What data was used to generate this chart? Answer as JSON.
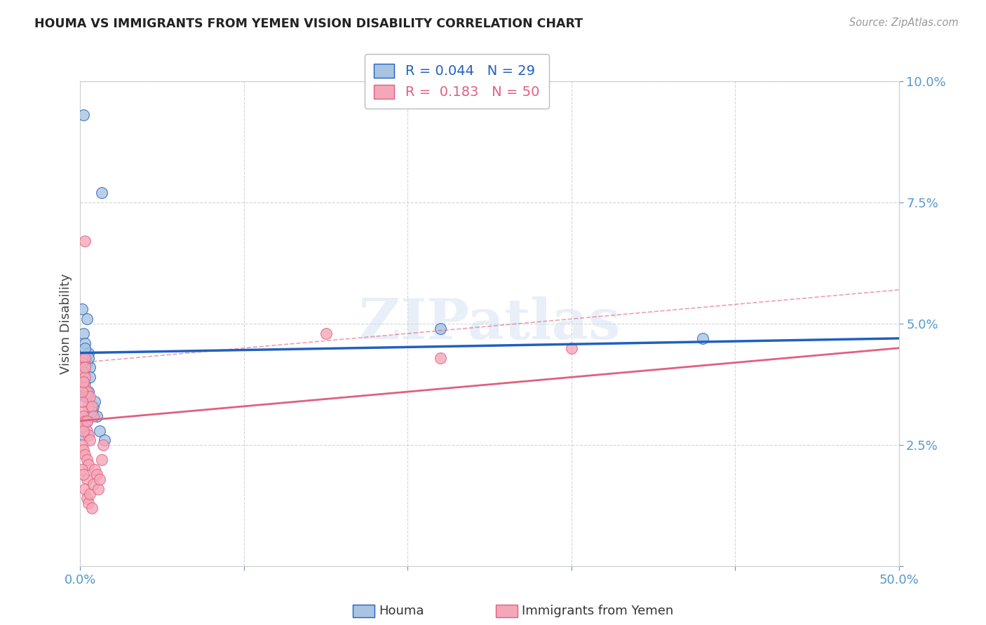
{
  "title": "HOUMA VS IMMIGRANTS FROM YEMEN VISION DISABILITY CORRELATION CHART",
  "source": "Source: ZipAtlas.com",
  "ylabel": "Vision Disability",
  "xlabel_houma": "Houma",
  "xlabel_yemen": "Immigrants from Yemen",
  "R_houma": 0.044,
  "N_houma": 29,
  "R_yemen": 0.183,
  "N_yemen": 50,
  "xlim": [
    0.0,
    0.5
  ],
  "ylim": [
    0.0,
    0.1
  ],
  "color_houma": "#a8c4e0",
  "color_yemen": "#f4a7b9",
  "line_color_houma": "#2060c0",
  "line_color_yemen": "#e06080",
  "houma_x": [
    0.002,
    0.013,
    0.001,
    0.002,
    0.003,
    0.004,
    0.003,
    0.005,
    0.004,
    0.003,
    0.006,
    0.005,
    0.001,
    0.002,
    0.003,
    0.008,
    0.01,
    0.012,
    0.015,
    0.007,
    0.009,
    0.001,
    0.003,
    0.004,
    0.002,
    0.006,
    0.22,
    0.38,
    0.005
  ],
  "houma_y": [
    0.093,
    0.077,
    0.053,
    0.048,
    0.046,
    0.051,
    0.043,
    0.044,
    0.042,
    0.038,
    0.041,
    0.036,
    0.04,
    0.037,
    0.045,
    0.033,
    0.031,
    0.028,
    0.026,
    0.032,
    0.034,
    0.029,
    0.035,
    0.03,
    0.027,
    0.039,
    0.049,
    0.047,
    0.043
  ],
  "yemen_x": [
    0.001,
    0.001,
    0.002,
    0.002,
    0.003,
    0.003,
    0.004,
    0.004,
    0.005,
    0.001,
    0.002,
    0.003,
    0.004,
    0.005,
    0.006,
    0.001,
    0.002,
    0.003,
    0.004,
    0.005,
    0.006,
    0.007,
    0.008,
    0.001,
    0.002,
    0.003,
    0.004,
    0.001,
    0.002,
    0.003,
    0.004,
    0.005,
    0.006,
    0.007,
    0.008,
    0.009,
    0.01,
    0.011,
    0.012,
    0.013,
    0.014,
    0.001,
    0.003,
    0.15,
    0.22,
    0.3,
    0.001,
    0.002,
    0.003,
    0.004
  ],
  "yemen_y": [
    0.043,
    0.042,
    0.04,
    0.038,
    0.043,
    0.037,
    0.036,
    0.035,
    0.033,
    0.032,
    0.031,
    0.03,
    0.028,
    0.027,
    0.026,
    0.025,
    0.024,
    0.023,
    0.022,
    0.021,
    0.035,
    0.033,
    0.031,
    0.029,
    0.028,
    0.067,
    0.018,
    0.02,
    0.019,
    0.016,
    0.014,
    0.013,
    0.015,
    0.012,
    0.017,
    0.02,
    0.019,
    0.016,
    0.018,
    0.022,
    0.025,
    0.034,
    0.039,
    0.048,
    0.043,
    0.045,
    0.036,
    0.038,
    0.041,
    0.03
  ]
}
